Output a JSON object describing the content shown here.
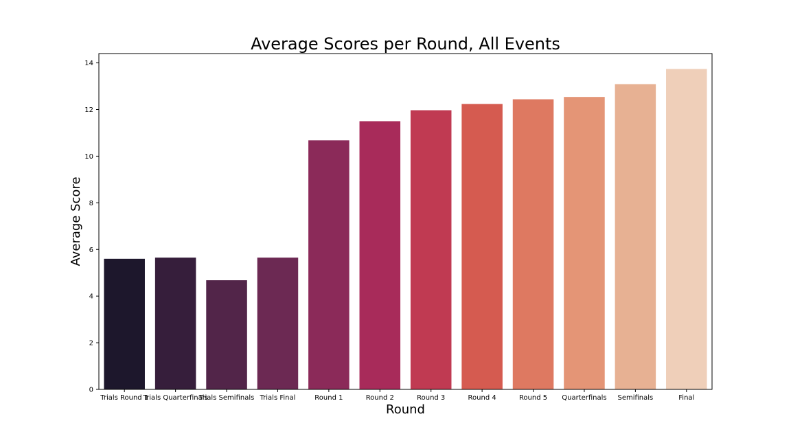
{
  "chart_data": {
    "type": "bar",
    "title": "Average Scores per Round, All Events",
    "xlabel": "Round",
    "ylabel": "Average Score",
    "ylim": [
      0,
      14.4
    ],
    "yticks": [
      0,
      2,
      4,
      6,
      8,
      10,
      12,
      14
    ],
    "grid": false,
    "categories": [
      "Trials Round 1",
      "Trials Quarterfinals",
      "Trials Semifinals",
      "Trials Final",
      "Round 1",
      "Round 2",
      "Round 3",
      "Round 4",
      "Round 5",
      "Quarterfinals",
      "Semifinals",
      "Final"
    ],
    "values": [
      5.6,
      5.65,
      4.68,
      5.65,
      10.68,
      11.5,
      11.97,
      12.24,
      12.44,
      12.54,
      13.09,
      13.74
    ],
    "colors": [
      "#1d172c",
      "#361e3b",
      "#522549",
      "#6c2953",
      "#8b2a59",
      "#a82b5a",
      "#c03a52",
      "#d55b50",
      "#de7961",
      "#e49576",
      "#e7b193",
      "#efcfb9"
    ]
  }
}
